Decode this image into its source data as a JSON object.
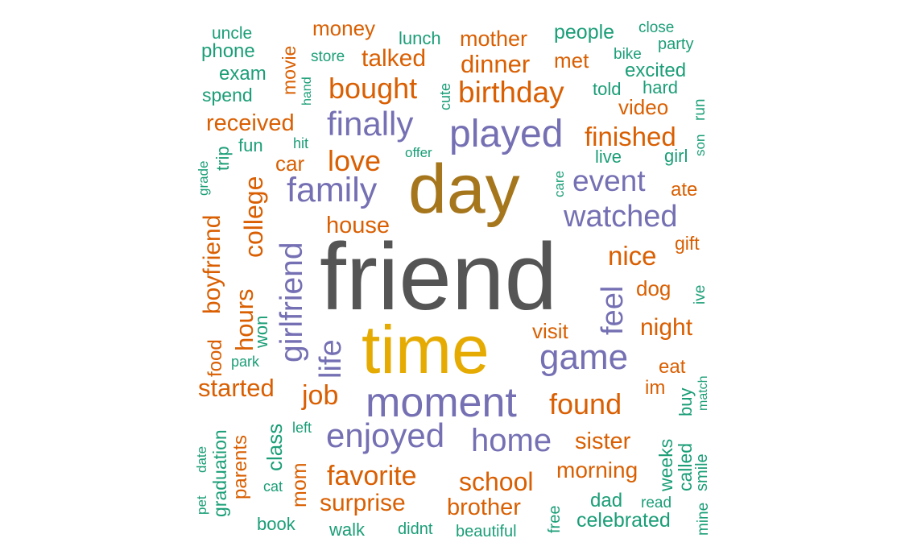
{
  "colors": {
    "teal": "#1b9e77",
    "orange": "#d95f02",
    "purple": "#7570b3",
    "brown": "#a6761d",
    "gold": "#e6ab02",
    "gray": "#555555"
  },
  "words": [
    {
      "text": "friend",
      "weight": 100,
      "color": "gray"
    },
    {
      "text": "time",
      "weight": 78,
      "color": "gold"
    },
    {
      "text": "day",
      "weight": 72,
      "color": "brown"
    },
    {
      "text": "moment",
      "weight": 49,
      "color": "purple"
    },
    {
      "text": "played",
      "weight": 46,
      "color": "purple"
    },
    {
      "text": "game",
      "weight": 43,
      "color": "purple"
    },
    {
      "text": "family",
      "weight": 42,
      "color": "purple"
    },
    {
      "text": "finally",
      "weight": 41,
      "color": "purple"
    },
    {
      "text": "enjoyed",
      "weight": 41,
      "color": "purple"
    },
    {
      "text": "home",
      "weight": 41,
      "color": "purple"
    },
    {
      "text": "girlfriend",
      "weight": 40,
      "color": "purple"
    },
    {
      "text": "watched",
      "weight": 39,
      "color": "purple"
    },
    {
      "text": "life",
      "weight": 38,
      "color": "purple"
    },
    {
      "text": "event",
      "weight": 38,
      "color": "purple"
    },
    {
      "text": "feel",
      "weight": 37,
      "color": "purple"
    },
    {
      "text": "birthday",
      "weight": 36,
      "color": "orange"
    },
    {
      "text": "bought",
      "weight": 36,
      "color": "orange"
    },
    {
      "text": "love",
      "weight": 35,
      "color": "orange"
    },
    {
      "text": "found",
      "weight": 35,
      "color": "orange"
    },
    {
      "text": "favorite",
      "weight": 34,
      "color": "orange"
    },
    {
      "text": "job",
      "weight": 33,
      "color": "orange"
    },
    {
      "text": "finished",
      "weight": 33,
      "color": "orange"
    },
    {
      "text": "nice",
      "weight": 32,
      "color": "orange"
    },
    {
      "text": "college",
      "weight": 31,
      "color": "orange"
    },
    {
      "text": "hours",
      "weight": 31,
      "color": "orange"
    },
    {
      "text": "started",
      "weight": 30,
      "color": "orange"
    },
    {
      "text": "talked",
      "weight": 30,
      "color": "orange"
    },
    {
      "text": "dinner",
      "weight": 30,
      "color": "orange"
    },
    {
      "text": "school",
      "weight": 30,
      "color": "orange"
    },
    {
      "text": "received",
      "weight": 29,
      "color": "orange"
    },
    {
      "text": "night",
      "weight": 29,
      "color": "orange"
    },
    {
      "text": "surprise",
      "weight": 29,
      "color": "orange"
    },
    {
      "text": "brother",
      "weight": 28,
      "color": "orange"
    },
    {
      "text": "sister",
      "weight": 28,
      "color": "orange"
    },
    {
      "text": "boyfriend",
      "weight": 28,
      "color": "orange"
    },
    {
      "text": "house",
      "weight": 28,
      "color": "orange"
    },
    {
      "text": "morning",
      "weight": 27,
      "color": "orange"
    },
    {
      "text": "mother",
      "weight": 26,
      "color": "orange"
    },
    {
      "text": "video",
      "weight": 26,
      "color": "orange"
    },
    {
      "text": "visit",
      "weight": 26,
      "color": "orange"
    },
    {
      "text": "dog",
      "weight": 26,
      "color": "orange"
    },
    {
      "text": "car",
      "weight": 25,
      "color": "orange"
    },
    {
      "text": "class",
      "weight": 25,
      "color": "teal"
    },
    {
      "text": "mom",
      "weight": 25,
      "color": "orange"
    },
    {
      "text": "money",
      "weight": 24,
      "color": "orange"
    },
    {
      "text": "met",
      "weight": 24,
      "color": "orange"
    },
    {
      "text": "eat",
      "weight": 24,
      "color": "orange"
    },
    {
      "text": "im",
      "weight": 24,
      "color": "orange"
    },
    {
      "text": "ate",
      "weight": 23,
      "color": "orange"
    },
    {
      "text": "food",
      "weight": 23,
      "color": "orange"
    },
    {
      "text": "parents",
      "weight": 23,
      "color": "orange"
    },
    {
      "text": "movie",
      "weight": 22,
      "color": "orange"
    },
    {
      "text": "gift",
      "weight": 22,
      "color": "orange"
    },
    {
      "text": "people",
      "weight": 24,
      "color": "teal"
    },
    {
      "text": "phone",
      "weight": 23,
      "color": "teal"
    },
    {
      "text": "excited",
      "weight": 23,
      "color": "teal"
    },
    {
      "text": "exam",
      "weight": 23,
      "color": "teal"
    },
    {
      "text": "spend",
      "weight": 22,
      "color": "teal"
    },
    {
      "text": "fun",
      "weight": 22,
      "color": "teal"
    },
    {
      "text": "lunch",
      "weight": 21,
      "color": "teal"
    },
    {
      "text": "uncle",
      "weight": 21,
      "color": "teal"
    },
    {
      "text": "hard",
      "weight": 21,
      "color": "teal"
    },
    {
      "text": "told",
      "weight": 21,
      "color": "teal"
    },
    {
      "text": "live",
      "weight": 21,
      "color": "teal"
    },
    {
      "text": "girl",
      "weight": 21,
      "color": "teal"
    },
    {
      "text": "celebrated",
      "weight": 24,
      "color": "teal"
    },
    {
      "text": "weeks",
      "weight": 22,
      "color": "teal"
    },
    {
      "text": "called",
      "weight": 22,
      "color": "teal"
    },
    {
      "text": "graduation",
      "weight": 22,
      "color": "teal"
    },
    {
      "text": "trip",
      "weight": 21,
      "color": "teal"
    },
    {
      "text": "won",
      "weight": 21,
      "color": "teal"
    },
    {
      "text": "dad",
      "weight": 22,
      "color": "teal"
    },
    {
      "text": "walk",
      "weight": 21,
      "color": "teal"
    },
    {
      "text": "book",
      "weight": 20,
      "color": "teal"
    },
    {
      "text": "buy",
      "weight": 20,
      "color": "teal"
    },
    {
      "text": "party",
      "weight": 19,
      "color": "teal"
    },
    {
      "text": "store",
      "weight": 18,
      "color": "teal"
    },
    {
      "text": "bike",
      "weight": 18,
      "color": "teal"
    },
    {
      "text": "close",
      "weight": 18,
      "color": "teal"
    },
    {
      "text": "run",
      "weight": 18,
      "color": "teal"
    },
    {
      "text": "cute",
      "weight": 17,
      "color": "teal"
    },
    {
      "text": "hand",
      "weight": 16,
      "color": "teal"
    },
    {
      "text": "hit",
      "weight": 17,
      "color": "teal"
    },
    {
      "text": "offer",
      "weight": 17,
      "color": "teal"
    },
    {
      "text": "son",
      "weight": 17,
      "color": "teal"
    },
    {
      "text": "grade",
      "weight": 17,
      "color": "teal"
    },
    {
      "text": "care",
      "weight": 17,
      "color": "teal"
    },
    {
      "text": "ive",
      "weight": 18,
      "color": "teal"
    },
    {
      "text": "park",
      "weight": 17,
      "color": "teal"
    },
    {
      "text": "match",
      "weight": 16,
      "color": "teal"
    },
    {
      "text": "left",
      "weight": 17,
      "color": "teal"
    },
    {
      "text": "date",
      "weight": 17,
      "color": "teal"
    },
    {
      "text": "pet",
      "weight": 17,
      "color": "teal"
    },
    {
      "text": "cat",
      "weight": 18,
      "color": "teal"
    },
    {
      "text": "read",
      "weight": 18,
      "color": "teal"
    },
    {
      "text": "free",
      "weight": 19,
      "color": "teal"
    },
    {
      "text": "smile",
      "weight": 19,
      "color": "teal"
    },
    {
      "text": "mine",
      "weight": 18,
      "color": "teal"
    },
    {
      "text": "didnt",
      "weight": 19,
      "color": "teal"
    },
    {
      "text": "beautiful",
      "weight": 19,
      "color": "teal"
    }
  ]
}
